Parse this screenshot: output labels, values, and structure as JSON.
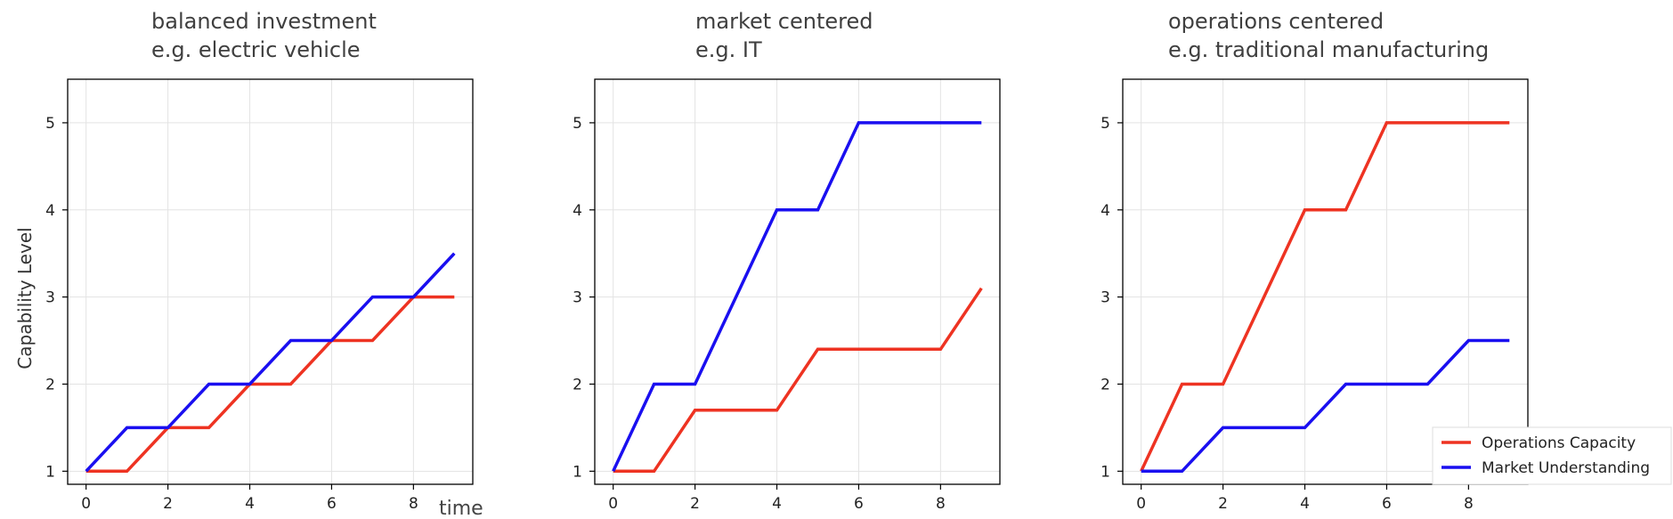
{
  "chart_data": [
    {
      "type": "line",
      "title_line1": "balanced investment",
      "title_line2": "e.g. electric vehicle",
      "ylabel": "Capability Level",
      "xlabel": "time",
      "xlim": [
        -0.45,
        9.45
      ],
      "ylim": [
        0.85,
        5.5
      ],
      "xticks": [
        "0",
        "2",
        "4",
        "6",
        "8"
      ],
      "yticks": [
        "1",
        "2",
        "3",
        "4",
        "5"
      ],
      "grid": true,
      "x": [
        0,
        1,
        2,
        3,
        4,
        5,
        6,
        7,
        8,
        9
      ],
      "series": [
        {
          "name": "Operations Capacity",
          "color": "#ee3322",
          "values": [
            1,
            1,
            1.5,
            1.5,
            2,
            2,
            2.5,
            2.5,
            3,
            3
          ]
        },
        {
          "name": "Market Understanding",
          "color": "#1a0ff0",
          "values": [
            1,
            1.5,
            1.5,
            2,
            2,
            2.5,
            2.5,
            3,
            3,
            3.5
          ]
        }
      ]
    },
    {
      "type": "line",
      "title_line1": "market centered",
      "title_line2": "e.g. IT",
      "ylabel": "",
      "xlabel": "",
      "xlim": [
        -0.45,
        9.45
      ],
      "ylim": [
        0.85,
        5.5
      ],
      "xticks": [
        "0",
        "2",
        "4",
        "6",
        "8"
      ],
      "yticks": [
        "1",
        "2",
        "3",
        "4",
        "5"
      ],
      "grid": true,
      "x": [
        0,
        1,
        2,
        3,
        4,
        5,
        6,
        7,
        8,
        9
      ],
      "series": [
        {
          "name": "Operations Capacity",
          "color": "#ee3322",
          "values": [
            1,
            1,
            1.7,
            1.7,
            1.7,
            2.4,
            2.4,
            2.4,
            2.4,
            3.1
          ]
        },
        {
          "name": "Market Understanding",
          "color": "#1a0ff0",
          "values": [
            1,
            2,
            2,
            3,
            4,
            4,
            5,
            5,
            5,
            5
          ]
        }
      ]
    },
    {
      "type": "line",
      "title_line1": "operations centered",
      "title_line2": "e.g. traditional manufacturing",
      "ylabel": "",
      "xlabel": "",
      "xlim": [
        -0.45,
        9.45
      ],
      "ylim": [
        0.85,
        5.5
      ],
      "xticks": [
        "0",
        "2",
        "4",
        "6",
        "8"
      ],
      "yticks": [
        "1",
        "2",
        "3",
        "4",
        "5"
      ],
      "grid": true,
      "x": [
        0,
        1,
        2,
        3,
        4,
        5,
        6,
        7,
        8,
        9
      ],
      "series": [
        {
          "name": "Operations Capacity",
          "color": "#ee3322",
          "values": [
            1,
            2,
            2,
            3,
            4,
            4,
            5,
            5,
            5,
            5
          ]
        },
        {
          "name": "Market Understanding",
          "color": "#1a0ff0",
          "values": [
            1,
            1,
            1.5,
            1.5,
            1.5,
            2,
            2,
            2,
            2.5,
            2.5
          ]
        }
      ]
    }
  ],
  "legend": {
    "placement": "lower-right",
    "entries": [
      {
        "label": "Operations Capacity",
        "color": "#ee3322"
      },
      {
        "label": "Market Understanding",
        "color": "#1a0ff0"
      }
    ]
  }
}
